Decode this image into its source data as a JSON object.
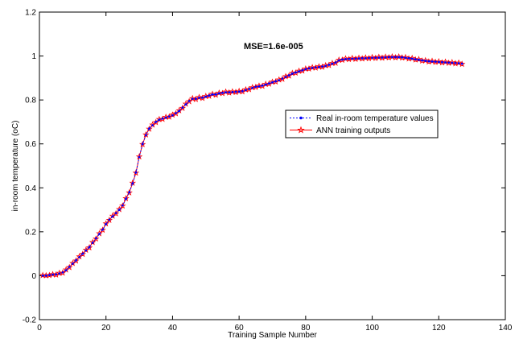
{
  "chart_data": {
    "type": "line",
    "title": "",
    "xlabel": "Training Sample Number",
    "ylabel": "in-room temperature (oC)",
    "annotation": "MSE=1.6e-005",
    "xlim": [
      0,
      140
    ],
    "ylim": [
      -0.2,
      1.2
    ],
    "xticks": [
      0,
      20,
      40,
      60,
      80,
      100,
      120,
      140
    ],
    "yticks": [
      -0.2,
      0,
      0.2,
      0.4,
      0.6,
      0.8,
      1,
      1.2
    ],
    "grid": false,
    "legend_position": "center-right",
    "x": [
      1,
      2,
      3,
      4,
      5,
      6,
      7,
      8,
      9,
      10,
      11,
      12,
      13,
      14,
      15,
      16,
      17,
      18,
      19,
      20,
      21,
      22,
      23,
      24,
      25,
      26,
      27,
      28,
      29,
      30,
      31,
      32,
      33,
      34,
      35,
      36,
      37,
      38,
      39,
      40,
      41,
      42,
      43,
      44,
      45,
      46,
      47,
      48,
      49,
      50,
      51,
      52,
      53,
      54,
      55,
      56,
      57,
      58,
      59,
      60,
      61,
      62,
      63,
      64,
      65,
      66,
      67,
      68,
      69,
      70,
      71,
      72,
      73,
      74,
      75,
      76,
      77,
      78,
      79,
      80,
      81,
      82,
      83,
      84,
      85,
      86,
      87,
      88,
      89,
      90,
      91,
      92,
      93,
      94,
      95,
      96,
      97,
      98,
      99,
      100,
      101,
      102,
      103,
      104,
      105,
      106,
      107,
      108,
      109,
      110,
      111,
      112,
      113,
      114,
      115,
      116,
      117,
      118,
      119,
      120,
      121,
      122,
      123,
      124,
      125,
      126,
      127
    ],
    "series": [
      {
        "name": "Real in-room temperature values",
        "color": "#0000ff",
        "style": "dotted-with-dots",
        "values": [
          0,
          0,
          0.003,
          0.005,
          0.006,
          0.01,
          0.015,
          0.025,
          0.04,
          0.055,
          0.07,
          0.085,
          0.1,
          0.115,
          0.13,
          0.15,
          0.17,
          0.19,
          0.21,
          0.235,
          0.255,
          0.27,
          0.285,
          0.3,
          0.32,
          0.35,
          0.38,
          0.42,
          0.47,
          0.54,
          0.6,
          0.64,
          0.67,
          0.685,
          0.7,
          0.71,
          0.715,
          0.72,
          0.725,
          0.73,
          0.74,
          0.75,
          0.765,
          0.78,
          0.795,
          0.805,
          0.805,
          0.81,
          0.81,
          0.815,
          0.82,
          0.825,
          0.825,
          0.83,
          0.832,
          0.835,
          0.835,
          0.836,
          0.837,
          0.838,
          0.84,
          0.845,
          0.85,
          0.855,
          0.86,
          0.862,
          0.865,
          0.87,
          0.875,
          0.88,
          0.885,
          0.89,
          0.897,
          0.905,
          0.912,
          0.92,
          0.925,
          0.93,
          0.935,
          0.94,
          0.944,
          0.946,
          0.948,
          0.95,
          0.952,
          0.955,
          0.96,
          0.965,
          0.97,
          0.98,
          0.984,
          0.986,
          0.987,
          0.988,
          0.988,
          0.989,
          0.99,
          0.99,
          0.991,
          0.992,
          0.992,
          0.993,
          0.993,
          0.994,
          0.995,
          0.995,
          0.995,
          0.995,
          0.994,
          0.992,
          0.99,
          0.988,
          0.985,
          0.983,
          0.98,
          0.978,
          0.976,
          0.975,
          0.974,
          0.973,
          0.972,
          0.971,
          0.97,
          0.969,
          0.968,
          0.967,
          0.965
        ]
      },
      {
        "name": "ANN training outputs",
        "color": "#ff0000",
        "style": "solid-with-stars",
        "values": [
          0.002,
          0.001,
          0.002,
          0.006,
          0.004,
          0.012,
          0.013,
          0.027,
          0.038,
          0.057,
          0.068,
          0.087,
          0.098,
          0.117,
          0.128,
          0.152,
          0.168,
          0.192,
          0.208,
          0.237,
          0.253,
          0.272,
          0.283,
          0.302,
          0.318,
          0.352,
          0.378,
          0.422,
          0.468,
          0.542,
          0.598,
          0.642,
          0.668,
          0.687,
          0.698,
          0.712,
          0.713,
          0.722,
          0.723,
          0.732,
          0.738,
          0.752,
          0.763,
          0.782,
          0.793,
          0.807,
          0.803,
          0.812,
          0.808,
          0.817,
          0.818,
          0.827,
          0.823,
          0.832,
          0.83,
          0.837,
          0.833,
          0.838,
          0.835,
          0.84,
          0.838,
          0.847,
          0.848,
          0.857,
          0.858,
          0.864,
          0.863,
          0.872,
          0.873,
          0.882,
          0.883,
          0.892,
          0.895,
          0.907,
          0.91,
          0.922,
          0.923,
          0.932,
          0.933,
          0.942,
          0.942,
          0.948,
          0.946,
          0.952,
          0.95,
          0.957,
          0.958,
          0.967,
          0.968,
          0.982,
          0.982,
          0.988,
          0.985,
          0.99,
          0.986,
          0.991,
          0.988,
          0.992,
          0.989,
          0.994,
          0.99,
          0.995,
          0.991,
          0.996,
          0.993,
          0.997,
          0.993,
          0.997,
          0.992,
          0.994,
          0.988,
          0.99,
          0.983,
          0.985,
          0.978,
          0.98,
          0.974,
          0.977,
          0.972,
          0.975,
          0.97,
          0.973,
          0.968,
          0.971,
          0.966,
          0.969,
          0.963
        ]
      }
    ]
  }
}
